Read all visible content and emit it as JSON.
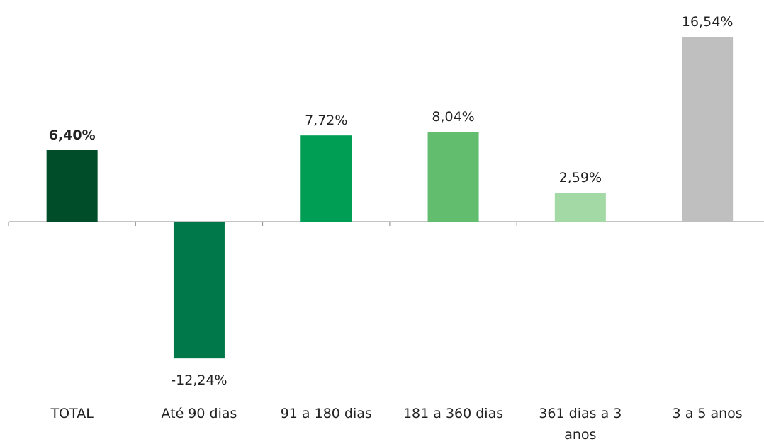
{
  "chart_data": {
    "type": "bar",
    "categories": [
      "TOTAL",
      "Até 90 dias",
      "91 a 180 dias",
      "181 a 360 dias",
      "361 dias a 3 anos",
      "3 a 5 anos"
    ],
    "values": [
      6.4,
      -12.24,
      7.72,
      8.04,
      2.59,
      16.54
    ],
    "value_labels": [
      "6,40%",
      "-12,24%",
      "7,72%",
      "8,04%",
      "2,59%",
      "16,54%"
    ],
    "colors": [
      "#004d2a",
      "#00784a",
      "#009e55",
      "#62bd6f",
      "#a3d9a4",
      "#bfbfbf"
    ]
  }
}
